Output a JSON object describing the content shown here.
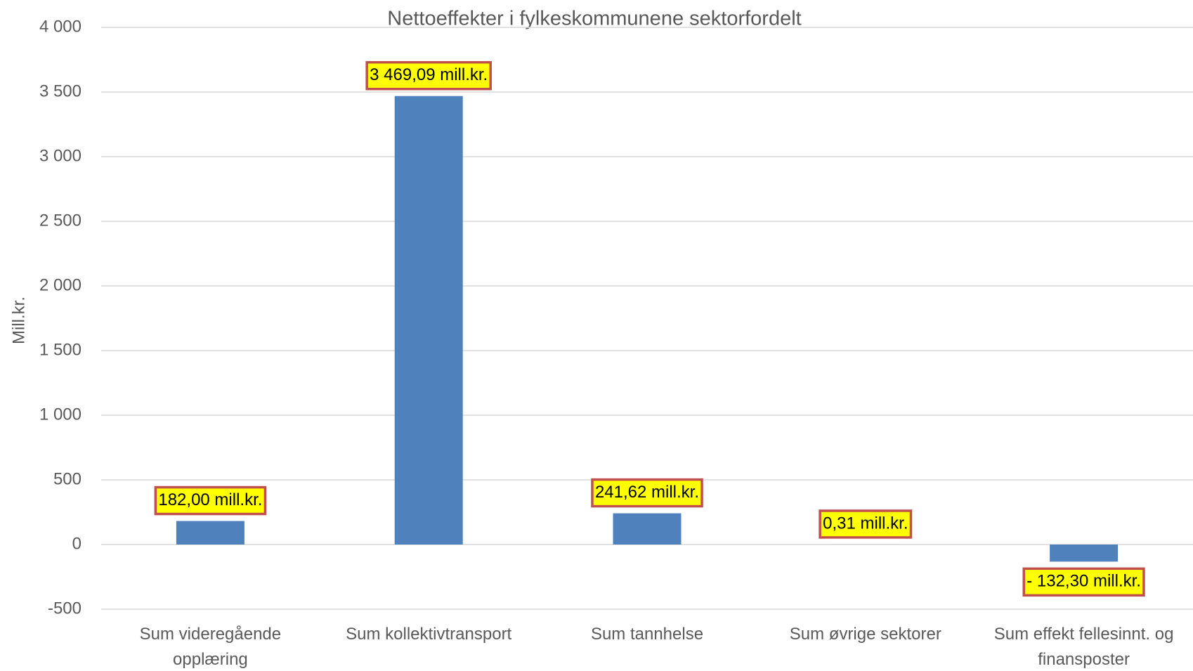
{
  "chart_data": {
    "type": "bar",
    "title": "Nettoeffekter i fylkeskommunene sektorfordelt",
    "y_label": "Mill.kr.",
    "categories": [
      "Sum videregående opplæring",
      "Sum kollektivtransport",
      "Sum tannhelse",
      "Sum øvrige sektorer",
      "Sum effekt fellesinnt. og finansposter"
    ],
    "values": [
      182.0,
      3469.09,
      241.62,
      0.31,
      -132.3
    ],
    "value_labels": [
      "182,00 mill.kr.",
      "3 469,09 mill.kr.",
      "241,62 mill.kr.",
      "0,31 mill.kr.",
      "- 132,30 mill.kr."
    ],
    "color": "#4f81bd",
    "label_fill": "#ffff00",
    "label_border": "#c0504d",
    "ylim": [
      -500,
      4000
    ],
    "yticks": [
      -500,
      0,
      500,
      {
        "value": 1000,
        "label": "1 000"
      },
      {
        "value": 1500,
        "label": "1 500"
      },
      {
        "value": 2000,
        "label": "2 000"
      },
      {
        "value": 2500,
        "label": "2 500"
      },
      {
        "value": 3000,
        "label": "3 000"
      },
      {
        "value": 3500,
        "label": "3 500"
      },
      {
        "value": 4000,
        "label": "4 000"
      }
    ],
    "grid": true
  }
}
